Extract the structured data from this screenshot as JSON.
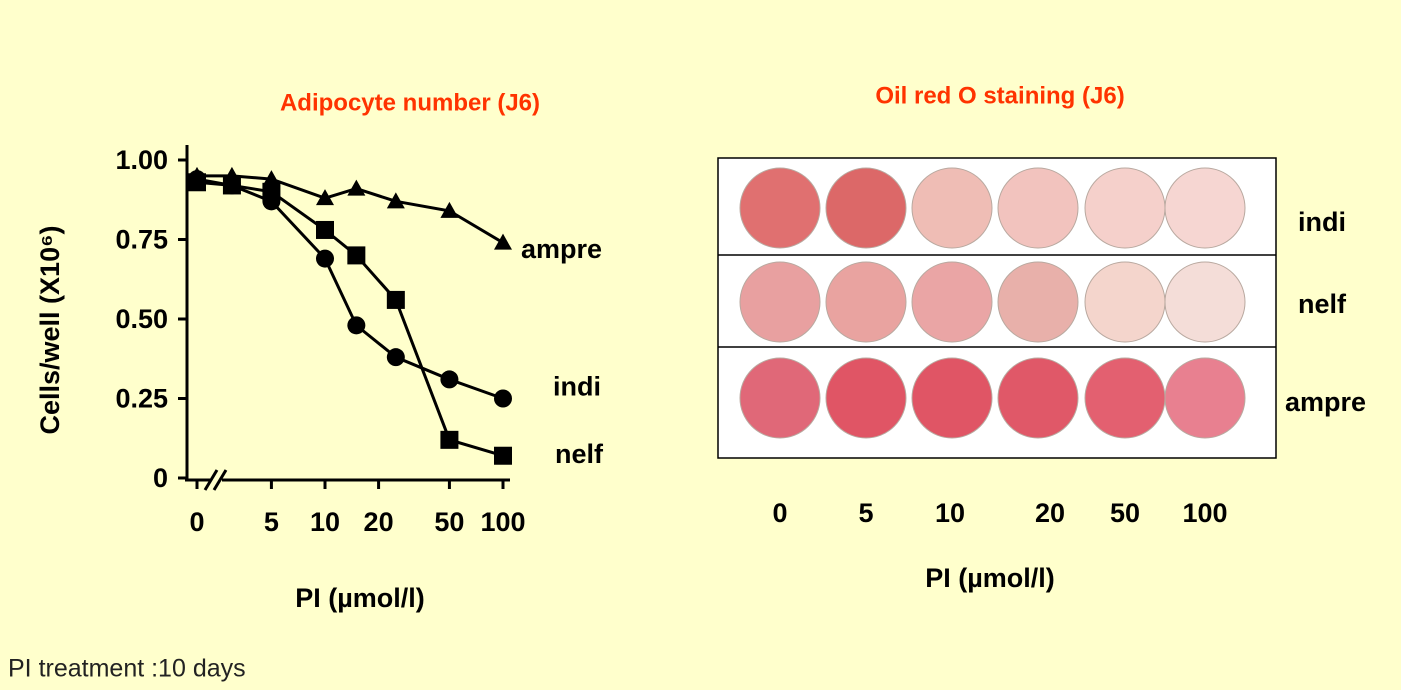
{
  "chart_data": {
    "type": "line",
    "title": "Adipocyte number  (J6)",
    "xlabel": "PI (µmol/l)",
    "ylabel": "Cells/well (X10⁶)",
    "xscale": "log-with-zero-break",
    "x": [
      0,
      3,
      5,
      10,
      15,
      25,
      50,
      100
    ],
    "xlim": [
      0,
      100
    ],
    "xticks": [
      0,
      5,
      10,
      20,
      50,
      100
    ],
    "ylim": [
      0,
      1
    ],
    "yticks": [
      0,
      0.25,
      {
        "value": 0.5,
        "label": "0.50"
      },
      0.75,
      {
        "value": 1,
        "label": "1.00"
      }
    ],
    "series": [
      {
        "name": "ampre",
        "color": "#000000",
        "marker": "triangle",
        "values": [
          0.95,
          0.95,
          0.94,
          0.88,
          0.91,
          0.87,
          0.84,
          0.74
        ]
      },
      {
        "name": "indi",
        "color": "#000000",
        "marker": "circle",
        "values": [
          0.94,
          0.92,
          0.87,
          0.69,
          0.48,
          0.38,
          0.31,
          0.25
        ]
      },
      {
        "name": "nelf",
        "color": "#000000",
        "marker": "square",
        "values": [
          0.93,
          0.92,
          0.9,
          0.78,
          0.7,
          0.56,
          0.12,
          0.07
        ]
      }
    ]
  },
  "staining": {
    "title": "Oil red O staining (J6)",
    "xlabel": "PI (µmol/l)",
    "columns": [
      "0",
      "5",
      "10",
      "20",
      "50",
      "100"
    ],
    "rows": [
      {
        "label": "indi",
        "colors": [
          "#e07070",
          "#dc6868",
          "#efbdb5",
          "#f2c3be",
          "#f5d0cb",
          "#f6d6d2"
        ]
      },
      {
        "label": "nelf",
        "colors": [
          "#e8a0a0",
          "#e9a3a0",
          "#eaa5a5",
          "#e8b0aa",
          "#f4d5cc",
          "#f4ddd8"
        ]
      },
      {
        "label": "ampre",
        "colors": [
          "#e06878",
          "#e05565",
          "#e05565",
          "#e05868",
          "#e36070",
          "#e88090"
        ]
      }
    ]
  },
  "footer": "PI treatment :10 days"
}
